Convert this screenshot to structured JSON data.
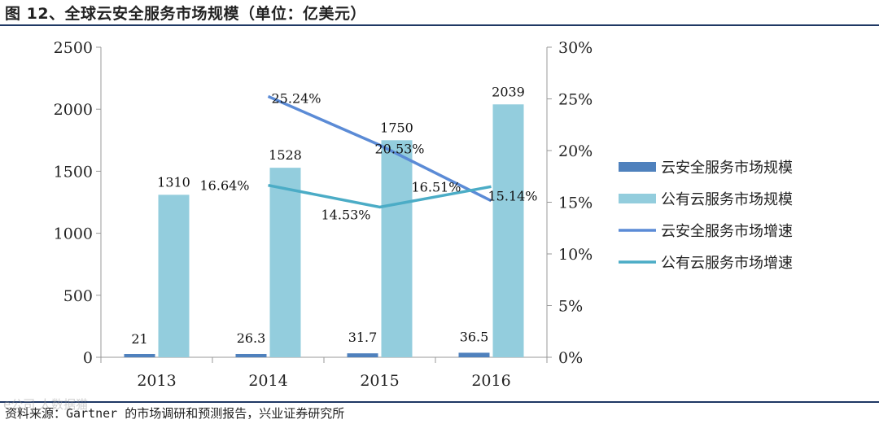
{
  "figure": {
    "title": "图 12、全球云安全服务市场规模（单位：亿美元）",
    "source": "资料来源：Gartner 的市场调研和预测报告，兴业证券研究所",
    "watermark": "e公司  人数据猫"
  },
  "colors": {
    "bar_dark": "#4f81bd",
    "bar_light": "#93cddd",
    "line_dark": "#5b8bd6",
    "line_teal": "#4bacc6",
    "rule": "#1f3864",
    "axis": "#999999"
  },
  "chart_data": {
    "type": "bar",
    "title": "",
    "xlabel": "",
    "ylabel": "",
    "categories": [
      "2013",
      "2014",
      "2015",
      "2016"
    ],
    "ylim": [
      0,
      2500
    ],
    "y_ticks": [
      "0",
      "500",
      "1000",
      "1500",
      "2000",
      "2500"
    ],
    "y2lim": [
      0,
      30
    ],
    "y2_ticks": [
      "0%",
      "5%",
      "10%",
      "15%",
      "20%",
      "25%",
      "30%"
    ],
    "grid": false,
    "legend_position": "right",
    "series": [
      {
        "name": "云安全服务市场规模",
        "kind": "bar",
        "axis": "left",
        "values": [
          21,
          26.3,
          31.7,
          36.5
        ],
        "labels": [
          "21",
          "26.3",
          "31.7",
          "36.5"
        ]
      },
      {
        "name": "公有云服务市场规模",
        "kind": "bar",
        "axis": "left",
        "values": [
          1310,
          1528,
          1750,
          2039
        ],
        "labels": [
          "1310",
          "1528",
          "1750",
          "2039"
        ]
      },
      {
        "name": "云安全服务市场增速",
        "kind": "line",
        "axis": "right",
        "values": [
          null,
          25.24,
          20.53,
          15.14
        ],
        "labels": [
          "",
          "25.24%",
          "20.53%",
          "15.14%"
        ]
      },
      {
        "name": "公有云服务市场增速",
        "kind": "line",
        "axis": "right",
        "values": [
          null,
          16.64,
          14.53,
          16.51
        ],
        "labels": [
          "",
          "16.64%",
          "14.53%",
          "16.51%"
        ]
      }
    ]
  }
}
